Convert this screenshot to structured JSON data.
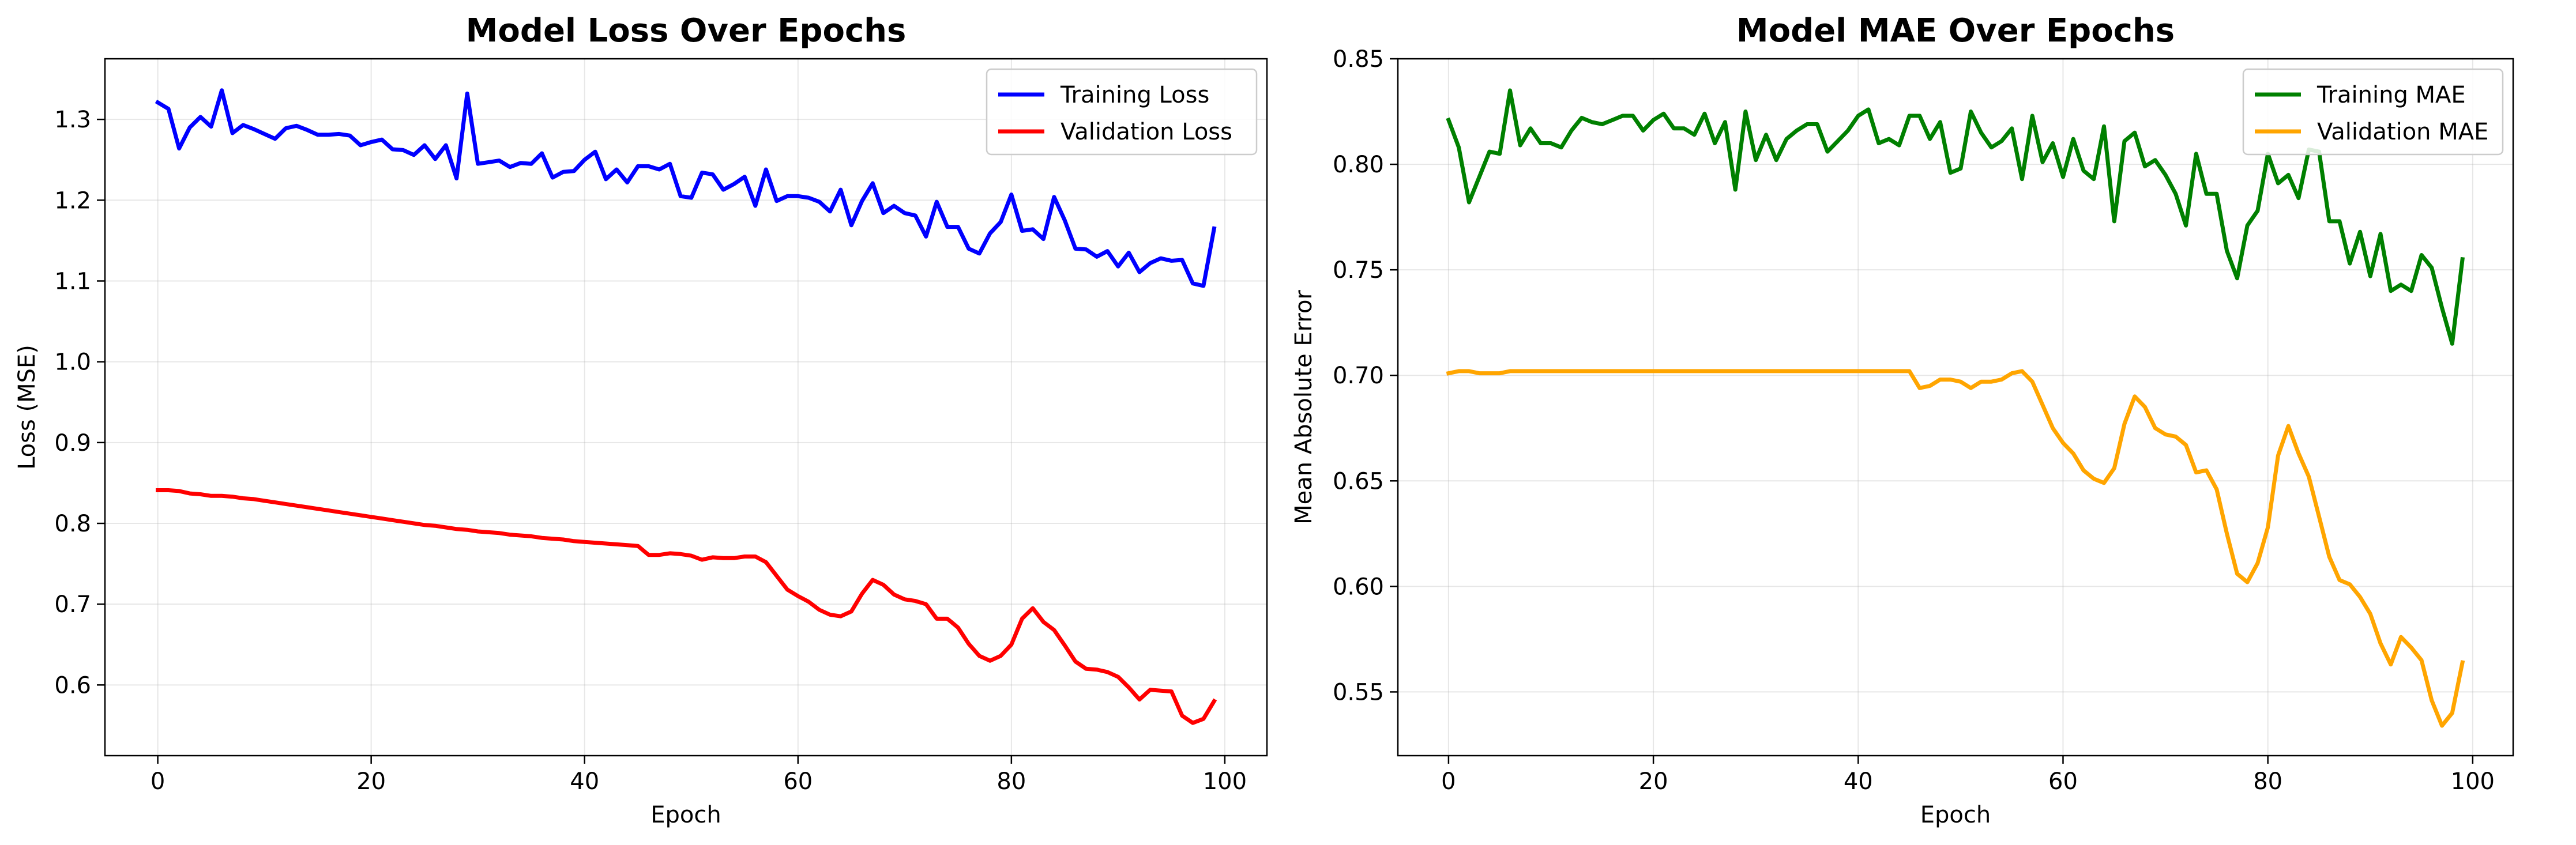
{
  "chart_data": [
    {
      "type": "line",
      "title": "Model Loss Over Epochs",
      "xlabel": "Epoch",
      "ylabel": "Loss (MSE)",
      "xlim": [
        -4.95,
        103.95
      ],
      "ylim": [
        0.5125,
        1.375
      ],
      "xticks": [
        0,
        20,
        40,
        60,
        80,
        100
      ],
      "xtick_labels": [
        "0",
        "20",
        "40",
        "60",
        "80",
        "100"
      ],
      "yticks": [
        0.6,
        0.7,
        0.8,
        0.9,
        1.0,
        1.1,
        1.2,
        1.3
      ],
      "ytick_labels": [
        "0.6",
        "0.7",
        "0.8",
        "0.9",
        "1.0",
        "1.1",
        "1.2",
        "1.3"
      ],
      "grid": true,
      "legend_position": "top-right",
      "x": [
        0,
        1,
        2,
        3,
        4,
        5,
        6,
        7,
        8,
        9,
        10,
        11,
        12,
        13,
        14,
        15,
        16,
        17,
        18,
        19,
        20,
        21,
        22,
        23,
        24,
        25,
        26,
        27,
        28,
        29,
        30,
        31,
        32,
        33,
        34,
        35,
        36,
        37,
        38,
        39,
        40,
        41,
        42,
        43,
        44,
        45,
        46,
        47,
        48,
        49,
        50,
        51,
        52,
        53,
        54,
        55,
        56,
        57,
        58,
        59,
        60,
        61,
        62,
        63,
        64,
        65,
        66,
        67,
        68,
        69,
        70,
        71,
        72,
        73,
        74,
        75,
        76,
        77,
        78,
        79,
        80,
        81,
        82,
        83,
        84,
        85,
        86,
        87,
        88,
        89,
        90,
        91,
        92,
        93,
        94,
        95,
        96,
        97,
        98,
        99
      ],
      "series": [
        {
          "name": "Training Loss",
          "color": "#0000ff",
          "values": [
            1.321,
            1.313,
            1.264,
            1.29,
            1.303,
            1.291,
            1.336,
            1.283,
            1.293,
            1.288,
            1.282,
            1.276,
            1.289,
            1.292,
            1.287,
            1.281,
            1.281,
            1.282,
            1.28,
            1.268,
            1.272,
            1.275,
            1.263,
            1.262,
            1.256,
            1.268,
            1.251,
            1.268,
            1.227,
            1.332,
            1.245,
            1.247,
            1.249,
            1.241,
            1.246,
            1.245,
            1.258,
            1.228,
            1.235,
            1.236,
            1.25,
            1.26,
            1.226,
            1.238,
            1.222,
            1.242,
            1.242,
            1.238,
            1.245,
            1.205,
            1.203,
            1.234,
            1.232,
            1.213,
            1.22,
            1.229,
            1.193,
            1.238,
            1.199,
            1.205,
            1.205,
            1.203,
            1.198,
            1.186,
            1.213,
            1.169,
            1.199,
            1.221,
            1.184,
            1.193,
            1.184,
            1.181,
            1.155,
            1.198,
            1.167,
            1.167,
            1.14,
            1.134,
            1.159,
            1.173,
            1.207,
            1.162,
            1.164,
            1.152,
            1.204,
            1.175,
            1.14,
            1.139,
            1.13,
            1.137,
            1.118,
            1.135,
            1.111,
            1.122,
            1.128,
            1.125,
            1.126,
            1.097,
            1.094,
            1.165
          ]
        },
        {
          "name": "Validation Loss",
          "color": "#ff0000",
          "values": [
            0.841,
            0.841,
            0.84,
            0.837,
            0.836,
            0.834,
            0.834,
            0.833,
            0.831,
            0.83,
            0.828,
            0.826,
            0.824,
            0.822,
            0.82,
            0.818,
            0.816,
            0.814,
            0.812,
            0.81,
            0.808,
            0.806,
            0.804,
            0.802,
            0.8,
            0.798,
            0.797,
            0.795,
            0.793,
            0.792,
            0.79,
            0.789,
            0.788,
            0.786,
            0.785,
            0.784,
            0.782,
            0.781,
            0.78,
            0.778,
            0.777,
            0.776,
            0.775,
            0.774,
            0.773,
            0.772,
            0.761,
            0.761,
            0.763,
            0.762,
            0.76,
            0.755,
            0.758,
            0.757,
            0.757,
            0.759,
            0.759,
            0.752,
            0.735,
            0.718,
            0.71,
            0.703,
            0.693,
            0.687,
            0.685,
            0.691,
            0.713,
            0.73,
            0.724,
            0.712,
            0.706,
            0.704,
            0.7,
            0.682,
            0.682,
            0.671,
            0.651,
            0.636,
            0.63,
            0.636,
            0.65,
            0.682,
            0.695,
            0.678,
            0.668,
            0.649,
            0.629,
            0.62,
            0.619,
            0.616,
            0.61,
            0.597,
            0.582,
            0.594,
            0.593,
            0.592,
            0.562,
            0.553,
            0.558,
            0.58
          ]
        }
      ]
    },
    {
      "type": "line",
      "title": "Model MAE Over Epochs",
      "xlabel": "Epoch",
      "ylabel": "Mean Absolute Error",
      "xlim": [
        -4.95,
        103.95
      ],
      "ylim": [
        0.5198,
        0.85
      ],
      "xticks": [
        0,
        20,
        40,
        60,
        80,
        100
      ],
      "xtick_labels": [
        "0",
        "20",
        "40",
        "60",
        "80",
        "100"
      ],
      "yticks": [
        0.55,
        0.6,
        0.65,
        0.7,
        0.75,
        0.8,
        0.85
      ],
      "ytick_labels": [
        "0.55",
        "0.60",
        "0.65",
        "0.70",
        "0.75",
        "0.80",
        "0.85"
      ],
      "grid": true,
      "legend_position": "top-right",
      "x": [
        0,
        1,
        2,
        3,
        4,
        5,
        6,
        7,
        8,
        9,
        10,
        11,
        12,
        13,
        14,
        15,
        16,
        17,
        18,
        19,
        20,
        21,
        22,
        23,
        24,
        25,
        26,
        27,
        28,
        29,
        30,
        31,
        32,
        33,
        34,
        35,
        36,
        37,
        38,
        39,
        40,
        41,
        42,
        43,
        44,
        45,
        46,
        47,
        48,
        49,
        50,
        51,
        52,
        53,
        54,
        55,
        56,
        57,
        58,
        59,
        60,
        61,
        62,
        63,
        64,
        65,
        66,
        67,
        68,
        69,
        70,
        71,
        72,
        73,
        74,
        75,
        76,
        77,
        78,
        79,
        80,
        81,
        82,
        83,
        84,
        85,
        86,
        87,
        88,
        89,
        90,
        91,
        92,
        93,
        94,
        95,
        96,
        97,
        98,
        99
      ],
      "series": [
        {
          "name": "Training MAE",
          "color": "#008000",
          "values": [
            0.821,
            0.808,
            0.782,
            0.794,
            0.806,
            0.805,
            0.835,
            0.809,
            0.817,
            0.81,
            0.81,
            0.808,
            0.816,
            0.822,
            0.82,
            0.819,
            0.821,
            0.823,
            0.823,
            0.816,
            0.821,
            0.824,
            0.817,
            0.817,
            0.814,
            0.824,
            0.81,
            0.82,
            0.788,
            0.825,
            0.802,
            0.814,
            0.802,
            0.812,
            0.816,
            0.819,
            0.819,
            0.806,
            0.811,
            0.816,
            0.823,
            0.826,
            0.81,
            0.812,
            0.809,
            0.823,
            0.823,
            0.812,
            0.82,
            0.796,
            0.798,
            0.825,
            0.815,
            0.808,
            0.811,
            0.817,
            0.793,
            0.823,
            0.801,
            0.81,
            0.794,
            0.812,
            0.797,
            0.793,
            0.818,
            0.773,
            0.811,
            0.815,
            0.799,
            0.802,
            0.795,
            0.786,
            0.771,
            0.805,
            0.786,
            0.786,
            0.759,
            0.746,
            0.771,
            0.778,
            0.805,
            0.791,
            0.795,
            0.784,
            0.807,
            0.806,
            0.773,
            0.773,
            0.753,
            0.768,
            0.747,
            0.767,
            0.74,
            0.743,
            0.74,
            0.757,
            0.751,
            0.732,
            0.715,
            0.755
          ]
        },
        {
          "name": "Validation MAE",
          "color": "#ffa500",
          "values": [
            0.701,
            0.702,
            0.702,
            0.701,
            0.701,
            0.701,
            0.702,
            0.702,
            0.702,
            0.702,
            0.702,
            0.702,
            0.702,
            0.702,
            0.702,
            0.702,
            0.702,
            0.702,
            0.702,
            0.702,
            0.702,
            0.702,
            0.702,
            0.702,
            0.702,
            0.702,
            0.702,
            0.702,
            0.702,
            0.702,
            0.702,
            0.702,
            0.702,
            0.702,
            0.702,
            0.702,
            0.702,
            0.702,
            0.702,
            0.702,
            0.702,
            0.702,
            0.702,
            0.702,
            0.702,
            0.702,
            0.694,
            0.695,
            0.698,
            0.698,
            0.697,
            0.694,
            0.697,
            0.697,
            0.698,
            0.701,
            0.702,
            0.697,
            0.686,
            0.675,
            0.668,
            0.663,
            0.655,
            0.651,
            0.649,
            0.656,
            0.677,
            0.69,
            0.685,
            0.675,
            0.672,
            0.671,
            0.667,
            0.654,
            0.655,
            0.646,
            0.625,
            0.606,
            0.602,
            0.611,
            0.628,
            0.662,
            0.676,
            0.663,
            0.652,
            0.633,
            0.614,
            0.603,
            0.601,
            0.595,
            0.587,
            0.573,
            0.563,
            0.576,
            0.571,
            0.565,
            0.546,
            0.534,
            0.54,
            0.564
          ]
        }
      ]
    }
  ]
}
